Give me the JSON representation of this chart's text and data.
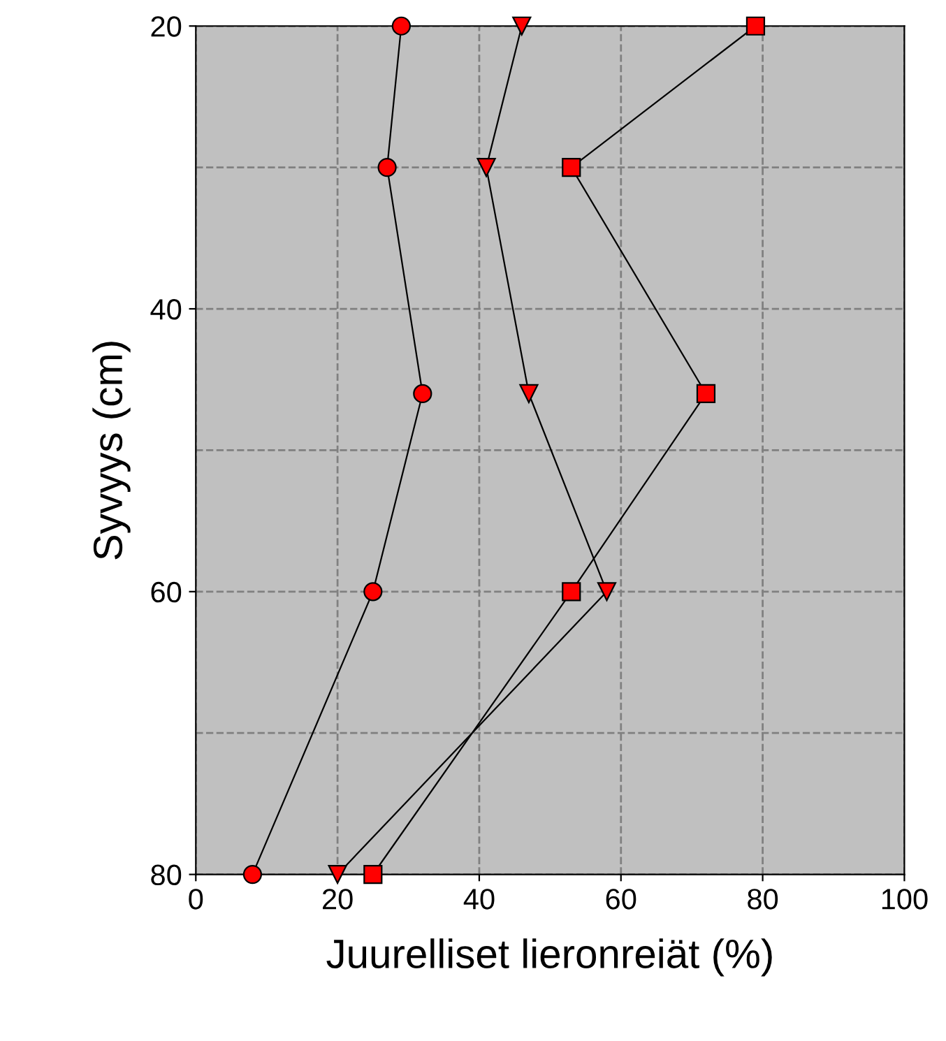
{
  "chart_data": {
    "type": "line",
    "xlabel": "Juurelliset lieronreiät (%)",
    "ylabel": "Syvyys (cm)",
    "xlim": [
      0,
      100
    ],
    "xticks": [
      0,
      20,
      40,
      60,
      80,
      100
    ],
    "ylim": [
      80,
      20
    ],
    "yticks": [
      20,
      {
        "value": 30,
        "label": null
      },
      40,
      {
        "value": 50,
        "label": null
      },
      60,
      {
        "value": 70,
        "label": null
      },
      80
    ],
    "grid": true,
    "line_style": "solid",
    "legend": false,
    "series": [
      {
        "color": "#ff0000",
        "marker": "circle",
        "x": [
          29,
          27,
          32,
          25,
          8
        ],
        "values": [
          20,
          30,
          46,
          60,
          80
        ]
      },
      {
        "color": "#ff0000",
        "marker": "triangle",
        "x": [
          46,
          41,
          47,
          58,
          20
        ],
        "values": [
          20,
          30,
          46,
          60,
          80
        ]
      },
      {
        "color": "#ff0000",
        "marker": "square",
        "x": [
          79,
          53,
          72,
          53,
          25
        ],
        "values": [
          20,
          30,
          46,
          60,
          80
        ]
      }
    ]
  }
}
